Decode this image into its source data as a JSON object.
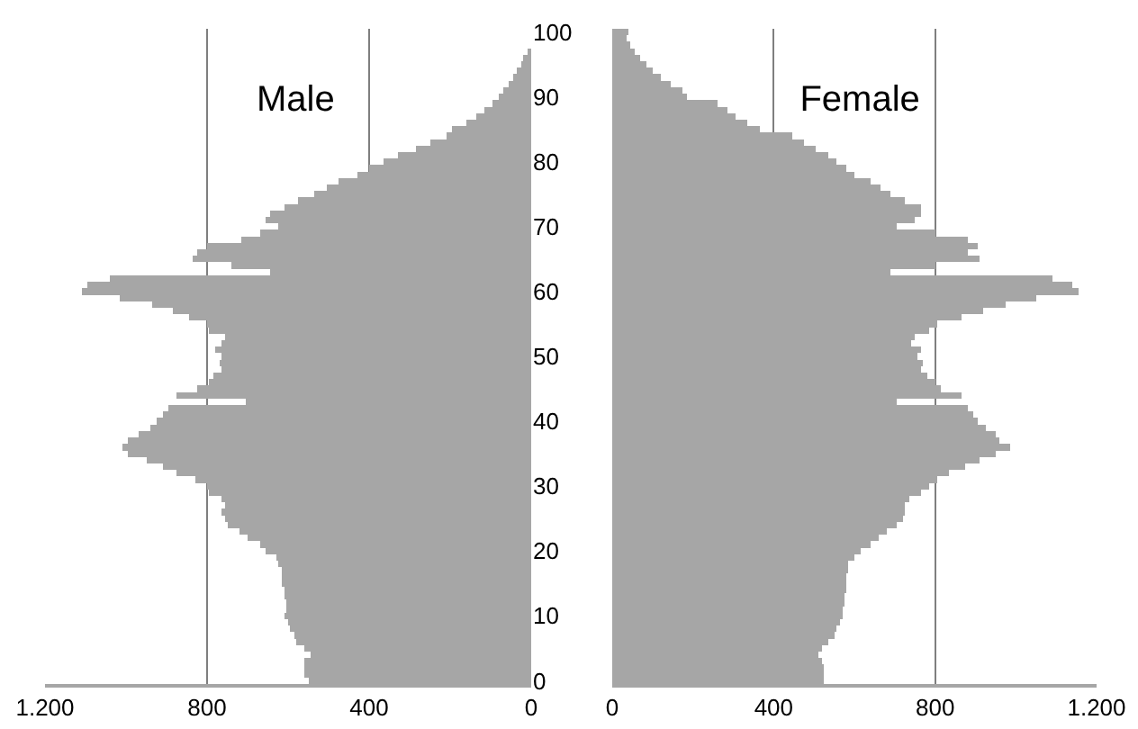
{
  "chart_data": [
    {
      "type": "bar",
      "orientation": "horizontal",
      "title": "Male",
      "color": "#a6a6a6",
      "grid": "x",
      "categories": [
        "100",
        null,
        null,
        null,
        null,
        null,
        null,
        null,
        null,
        null,
        "90",
        null,
        null,
        null,
        null,
        null,
        null,
        null,
        null,
        null,
        "80",
        null,
        null,
        null,
        null,
        null,
        null,
        null,
        null,
        null,
        "70",
        null,
        null,
        null,
        null,
        null,
        null,
        null,
        null,
        null,
        "60",
        null,
        null,
        null,
        null,
        null,
        null,
        null,
        null,
        null,
        "50",
        null,
        null,
        null,
        null,
        null,
        null,
        null,
        null,
        null,
        "40",
        null,
        null,
        null,
        null,
        null,
        null,
        null,
        null,
        null,
        "30",
        null,
        null,
        null,
        null,
        null,
        null,
        null,
        null,
        null,
        "20",
        null,
        null,
        null,
        null,
        null,
        null,
        null,
        null,
        null,
        "10",
        null,
        null,
        null,
        null,
        null,
        null,
        null,
        null,
        null,
        "0"
      ],
      "values": [
        null,
        null,
        null,
        10,
        20,
        25,
        35,
        45,
        55,
        70,
        80,
        95,
        115,
        135,
        160,
        195,
        210,
        250,
        285,
        330,
        365,
        400,
        430,
        475,
        505,
        535,
        575,
        610,
        645,
        655,
        625,
        670,
        715,
        800,
        825,
        835,
        740,
        645,
        1040,
        1095,
        1110,
        1015,
        935,
        885,
        845,
        800,
        795,
        755,
        765,
        780,
        765,
        770,
        765,
        785,
        795,
        825,
        875,
        705,
        895,
        910,
        925,
        940,
        970,
        995,
        1010,
        995,
        950,
        910,
        875,
        830,
        800,
        795,
        765,
        755,
        765,
        755,
        750,
        720,
        700,
        670,
        655,
        630,
        625,
        615,
        615,
        615,
        610,
        610,
        605,
        605,
        610,
        600,
        595,
        585,
        580,
        560,
        545,
        560,
        560,
        560,
        550
      ],
      "xlim": [
        1200,
        0
      ],
      "xticks": [
        {
          "value": 1200,
          "label": "1.200"
        },
        800,
        400,
        0
      ]
    },
    {
      "type": "bar",
      "orientation": "horizontal",
      "title": "Female",
      "color": "#a6a6a6",
      "grid": "x",
      "tick_labels": "x",
      "categories": [
        "100",
        null,
        null,
        null,
        null,
        null,
        null,
        null,
        null,
        null,
        "90",
        null,
        null,
        null,
        null,
        null,
        null,
        null,
        null,
        null,
        "80",
        null,
        null,
        null,
        null,
        null,
        null,
        null,
        null,
        null,
        "70",
        null,
        null,
        null,
        null,
        null,
        null,
        null,
        null,
        null,
        "60",
        null,
        null,
        null,
        null,
        null,
        null,
        null,
        null,
        null,
        "50",
        null,
        null,
        null,
        null,
        null,
        null,
        null,
        null,
        null,
        "40",
        null,
        null,
        null,
        null,
        null,
        null,
        null,
        null,
        null,
        "30",
        null,
        null,
        null,
        null,
        null,
        null,
        null,
        null,
        null,
        "20",
        null,
        null,
        null,
        null,
        null,
        null,
        null,
        null,
        null,
        "10",
        null,
        null,
        null,
        null,
        null,
        null,
        null,
        null,
        null,
        "0"
      ],
      "values": [
        40,
        35,
        45,
        55,
        70,
        85,
        100,
        120,
        145,
        175,
        185,
        260,
        285,
        305,
        335,
        365,
        445,
        475,
        505,
        535,
        555,
        580,
        600,
        640,
        665,
        690,
        725,
        765,
        765,
        750,
        705,
        800,
        880,
        905,
        880,
        910,
        800,
        690,
        1090,
        1140,
        1155,
        1050,
        975,
        920,
        865,
        805,
        785,
        750,
        740,
        765,
        755,
        770,
        765,
        780,
        800,
        815,
        865,
        705,
        880,
        895,
        905,
        925,
        950,
        960,
        985,
        950,
        910,
        875,
        835,
        805,
        785,
        765,
        735,
        725,
        725,
        720,
        705,
        680,
        660,
        640,
        615,
        600,
        585,
        585,
        580,
        580,
        580,
        575,
        575,
        570,
        570,
        565,
        555,
        550,
        535,
        520,
        510,
        520,
        525,
        525,
        525
      ],
      "xlim": [
        0,
        1200
      ],
      "xticks": [
        0,
        400,
        800,
        {
          "value": 1200,
          "label": "1.200"
        }
      ]
    }
  ]
}
